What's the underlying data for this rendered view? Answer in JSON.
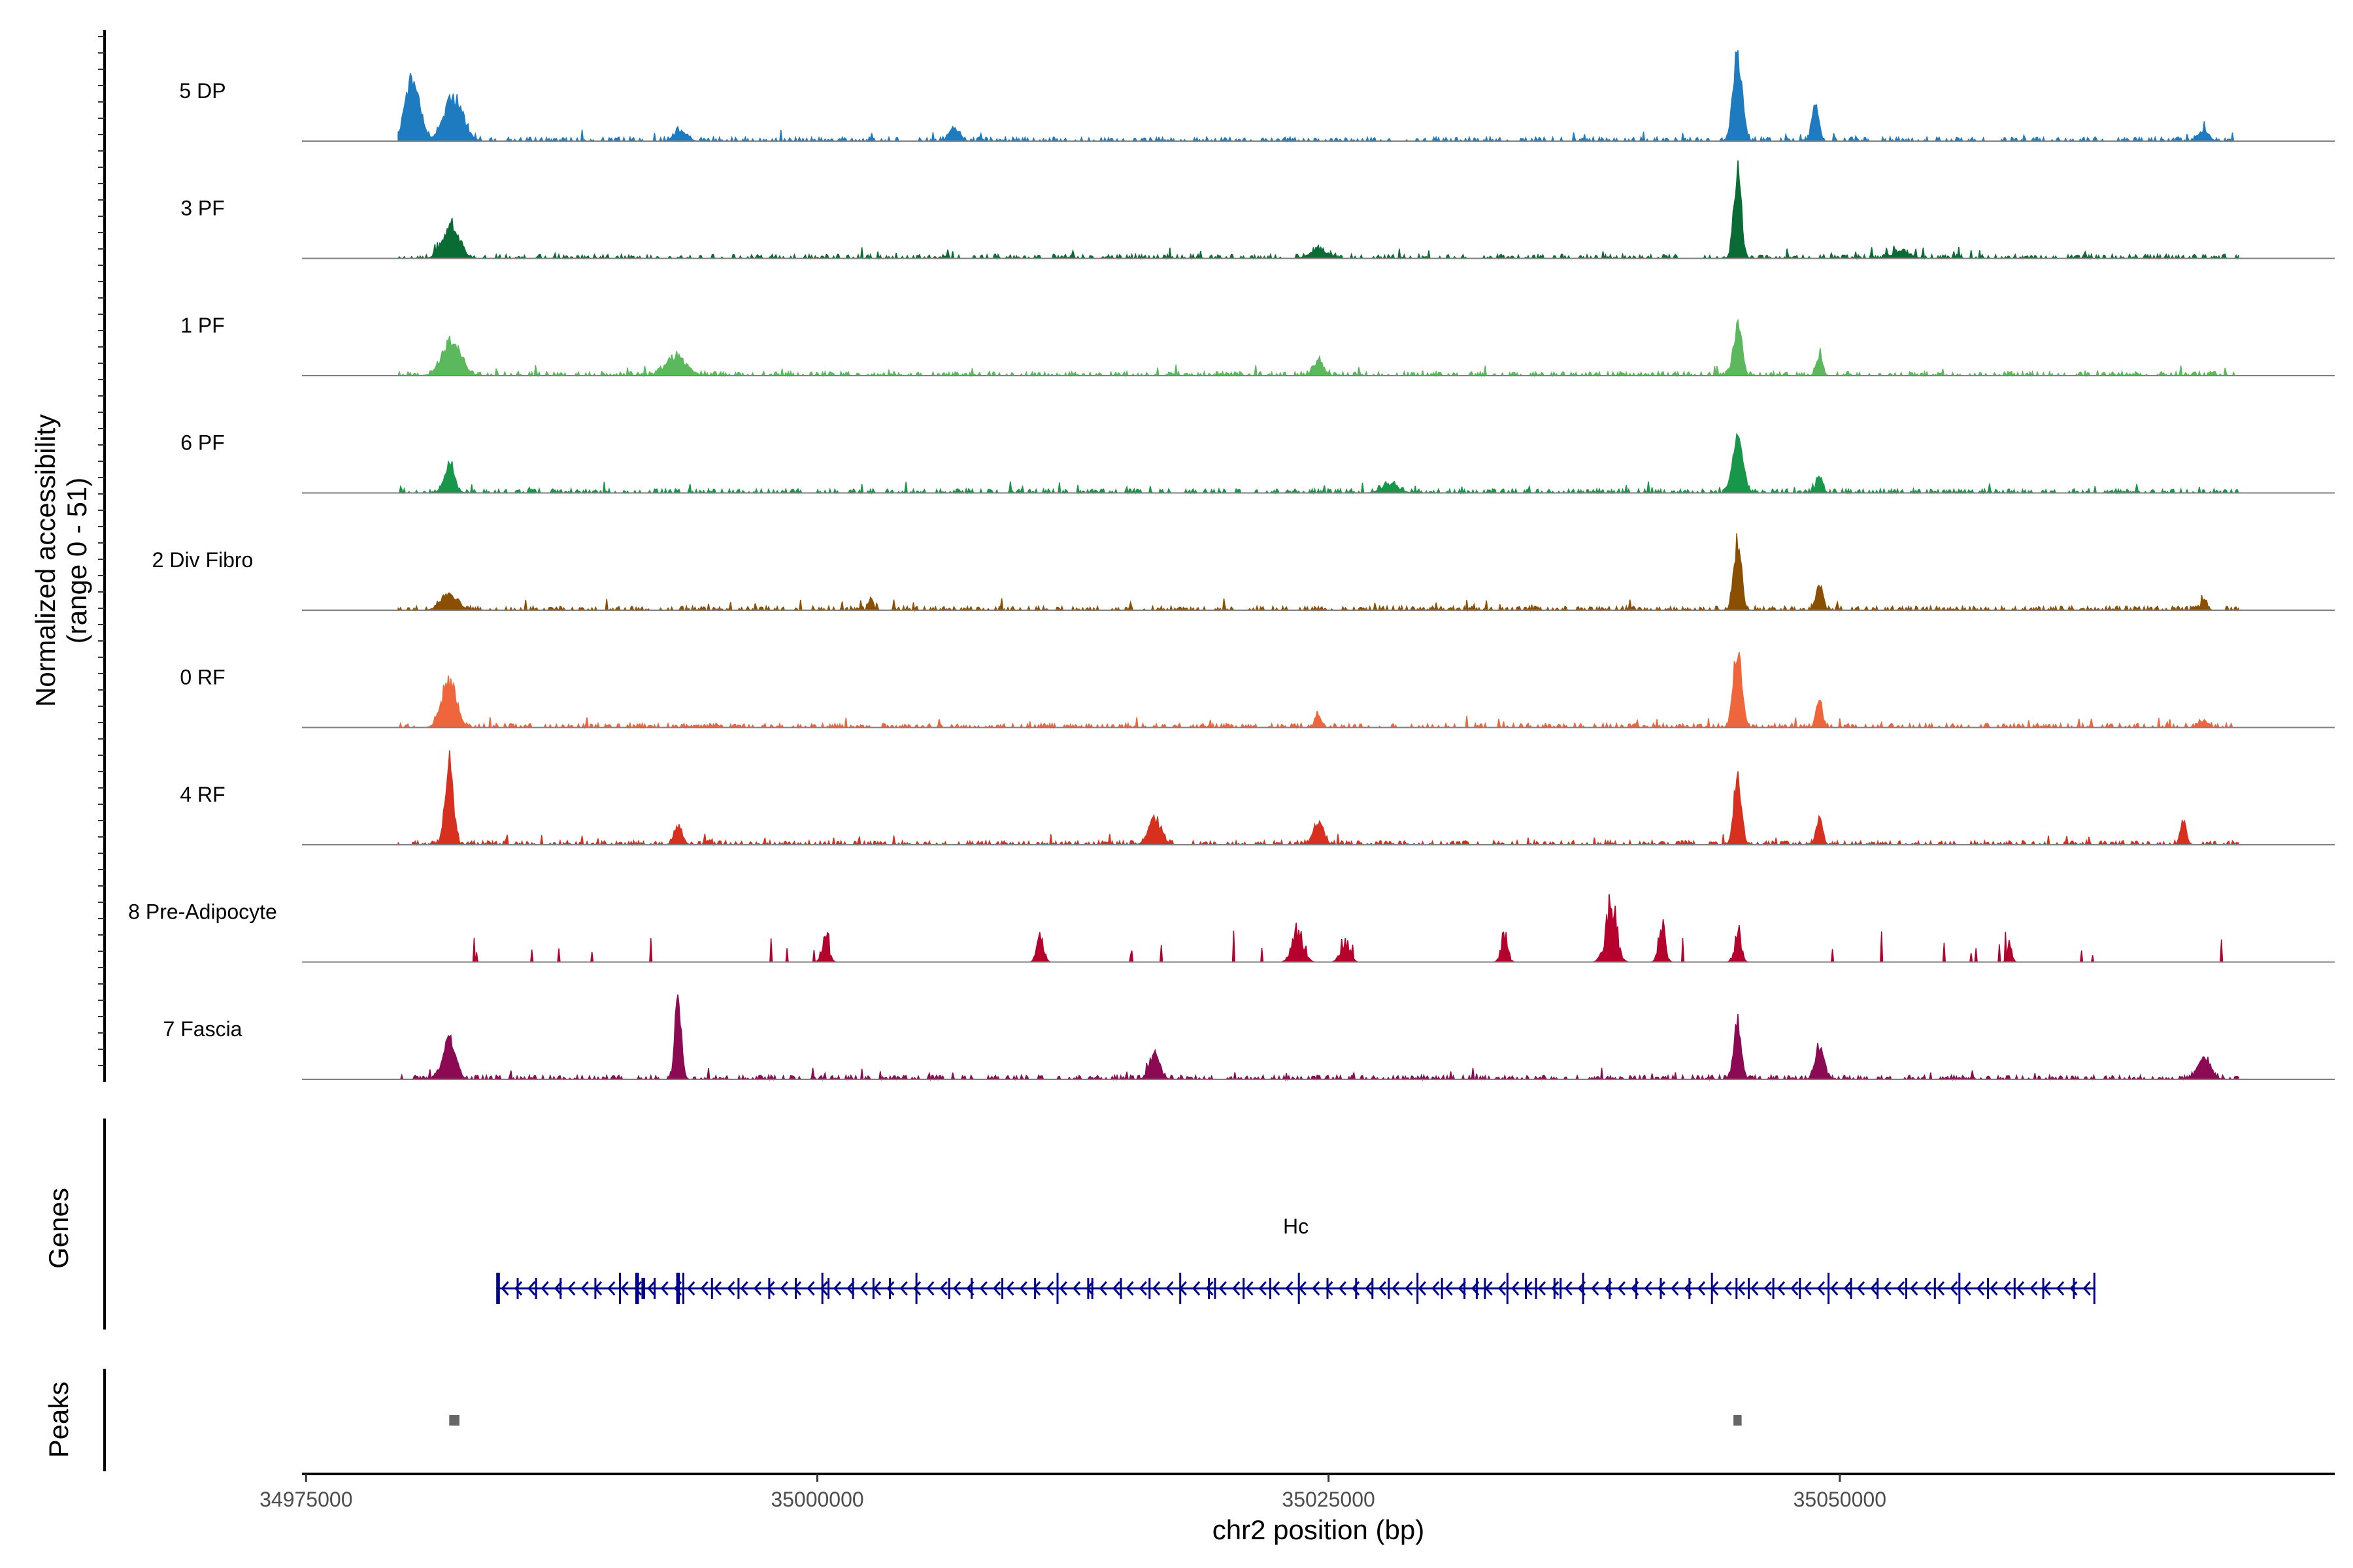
{
  "chart_data": {
    "type": "area",
    "title": "",
    "chromosome": "chr2",
    "xlabel": "chr2 position (bp)",
    "ylabel": "Normalized accessibility\n(range 0 - 51)",
    "ylabel_line1": "Normalized accessibility",
    "ylabel_line2": "(range 0 - 51)",
    "y_range": [
      0,
      51
    ],
    "xlim": [
      34974800,
      35074200
    ],
    "x_ticks": [
      34975000,
      35000000,
      35025000,
      35050000
    ],
    "x_tick_labels": [
      "34975000",
      "35000000",
      "35025000",
      "35050000"
    ],
    "data_extent": [
      34979500,
      35069500
    ],
    "grid": false,
    "series": [
      {
        "name": "5 DP",
        "color": "#1f7bbf",
        "peaks": [
          [
            34980200,
            0.7,
            350
          ],
          [
            34982200,
            0.52,
            450
          ],
          [
            34993300,
            0.12,
            300
          ],
          [
            35006700,
            0.16,
            250
          ],
          [
            35045000,
            1.0,
            220
          ],
          [
            35048800,
            0.42,
            160
          ],
          [
            35067800,
            0.12,
            250
          ]
        ]
      },
      {
        "name": "3 PF",
        "color": "#0b6b35",
        "peaks": [
          [
            34982100,
            0.38,
            400
          ],
          [
            35045000,
            1.0,
            180
          ],
          [
            35024500,
            0.1,
            400
          ],
          [
            35053000,
            0.08,
            400
          ]
        ]
      },
      {
        "name": "1 PF",
        "color": "#5cb85c",
        "peaks": [
          [
            34982100,
            0.4,
            450
          ],
          [
            34993100,
            0.22,
            500
          ],
          [
            35024500,
            0.17,
            250
          ],
          [
            35045000,
            0.58,
            200
          ],
          [
            35049000,
            0.22,
            150
          ]
        ]
      },
      {
        "name": "6 PF",
        "color": "#18964a",
        "peaks": [
          [
            34982000,
            0.3,
            250
          ],
          [
            35045000,
            0.62,
            250
          ],
          [
            35049000,
            0.18,
            150
          ],
          [
            35028000,
            0.1,
            400
          ]
        ]
      },
      {
        "name": "2 Div Fibro",
        "color": "#8a5000",
        "peaks": [
          [
            34982000,
            0.18,
            400
          ],
          [
            35045000,
            0.8,
            180
          ],
          [
            35049000,
            0.32,
            150
          ],
          [
            35002600,
            0.14,
            100
          ],
          [
            35067800,
            0.1,
            150
          ]
        ]
      },
      {
        "name": "0 RF",
        "color": "#f0663c",
        "peaks": [
          [
            34982000,
            0.52,
            350
          ],
          [
            35045000,
            0.9,
            200
          ],
          [
            35049000,
            0.3,
            150
          ],
          [
            35024500,
            0.15,
            150
          ],
          [
            35067800,
            0.08,
            200
          ]
        ]
      },
      {
        "name": "4 RF",
        "color": "#d7301f",
        "peaks": [
          [
            34982000,
            0.95,
            200
          ],
          [
            34993200,
            0.22,
            200
          ],
          [
            35016500,
            0.3,
            300
          ],
          [
            35024500,
            0.25,
            250
          ],
          [
            35045000,
            0.8,
            180
          ],
          [
            35049000,
            0.3,
            150
          ],
          [
            35066800,
            0.25,
            150
          ]
        ]
      },
      {
        "name": "8 Pre-Adipocyte",
        "color": "#b5002e",
        "peaks": [
          [
            35000400,
            0.55,
            150
          ],
          [
            35010900,
            0.52,
            150
          ],
          [
            35023500,
            0.55,
            250
          ],
          [
            35033600,
            0.5,
            150
          ],
          [
            35038800,
            1.0,
            250
          ],
          [
            35041300,
            0.72,
            150
          ],
          [
            35045000,
            0.55,
            150
          ],
          [
            35058300,
            0.35,
            100
          ],
          [
            35025800,
            0.4,
            200
          ]
        ]
      },
      {
        "name": "7 Fascia",
        "color": "#8b0a53",
        "peaks": [
          [
            34982000,
            0.45,
            300
          ],
          [
            34993200,
            0.98,
            150
          ],
          [
            35016500,
            0.3,
            250
          ],
          [
            35045000,
            0.68,
            180
          ],
          [
            35049000,
            0.38,
            200
          ],
          [
            35067800,
            0.25,
            300
          ]
        ]
      }
    ],
    "genes_track": {
      "label": "Genes",
      "color": "#00008b",
      "genes": [
        {
          "name": "Hc",
          "start": 34984300,
          "end": 35062500,
          "strand": "-",
          "exons": [
            34984300,
            34985300,
            34986200,
            34987400,
            34989100,
            34990300,
            34991100,
            34991400,
            34992000,
            34993100,
            34993400,
            34994800,
            34996100,
            34997600,
            34998900,
            35000200,
            35000500,
            35001700,
            35002700,
            35003500,
            35004800,
            35006400,
            35007500,
            35009000,
            35010600,
            35011700,
            35013200,
            35013400,
            35014800,
            35016200,
            35017700,
            35019100,
            35019400,
            35020800,
            35022100,
            35023500,
            35024900,
            35026300,
            35027100,
            35027900,
            35029300,
            35030500,
            35031600,
            35032200,
            35032600,
            35033700,
            35034600,
            35035100,
            35036000,
            35036300,
            35037400,
            35038700,
            35040000,
            35041200,
            35042600,
            35043700,
            35044900,
            35045500,
            35046700,
            35048000,
            35049400,
            35050500,
            35051800,
            35053200,
            35054600,
            35055800,
            35057200,
            35058500,
            35059900,
            35061400,
            35062400
          ]
        }
      ]
    },
    "peaks_track": {
      "label": "Peaks",
      "color": "#666666",
      "regions": [
        [
          34982000,
          34982500
        ],
        [
          35044800,
          35045200
        ]
      ]
    }
  }
}
